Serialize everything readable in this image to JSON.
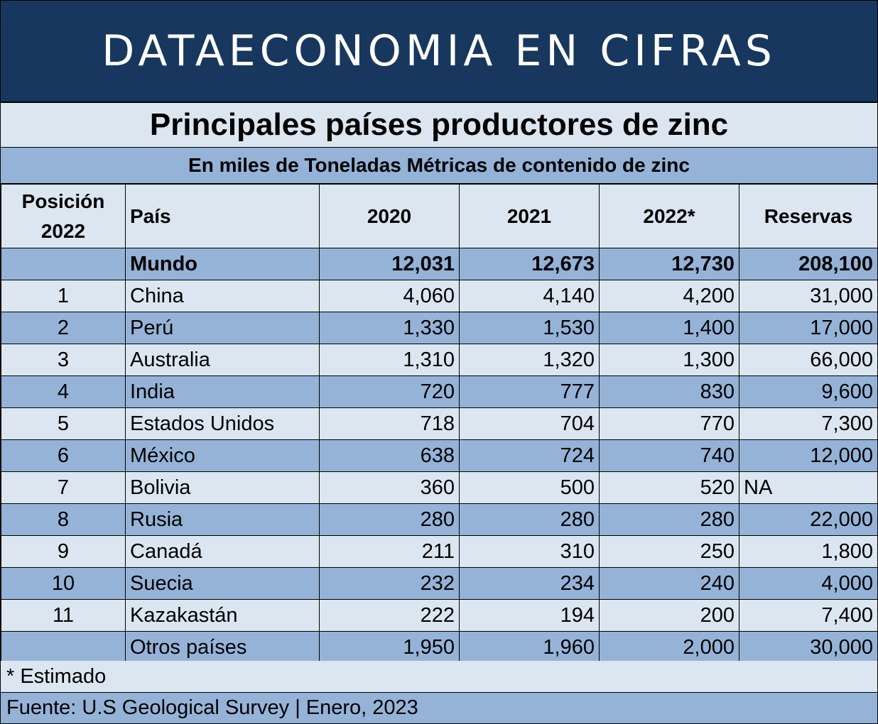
{
  "banner": "DATAECONOMIA EN CIFRAS",
  "colors": {
    "navy": "#17375e",
    "light": "#dce6f1",
    "dark": "#95b3d7"
  },
  "chart_data": {
    "type": "table",
    "title": "Principales países productores de zinc",
    "subtitle": "En miles de Toneladas Métricas de contenido de zinc",
    "columns": [
      "Posición 2022",
      "País",
      "2020",
      "2021",
      "2022*",
      "Reservas"
    ],
    "rows": [
      {
        "pos": "",
        "country": "Mundo",
        "y2020": "12,031",
        "y2021": "12,673",
        "y2022": "12,730",
        "reserves": "208,100"
      },
      {
        "pos": "1",
        "country": "China",
        "y2020": "4,060",
        "y2021": "4,140",
        "y2022": "4,200",
        "reserves": "31,000"
      },
      {
        "pos": "2",
        "country": "Perú",
        "y2020": "1,330",
        "y2021": "1,530",
        "y2022": "1,400",
        "reserves": "17,000"
      },
      {
        "pos": "3",
        "country": "Australia",
        "y2020": "1,310",
        "y2021": "1,320",
        "y2022": "1,300",
        "reserves": "66,000"
      },
      {
        "pos": "4",
        "country": "India",
        "y2020": "720",
        "y2021": "777",
        "y2022": "830",
        "reserves": "9,600"
      },
      {
        "pos": "5",
        "country": "Estados Unidos",
        "y2020": "718",
        "y2021": "704",
        "y2022": "770",
        "reserves": "7,300"
      },
      {
        "pos": "6",
        "country": "México",
        "y2020": "638",
        "y2021": "724",
        "y2022": "740",
        "reserves": "12,000"
      },
      {
        "pos": "7",
        "country": "Bolivia",
        "y2020": "360",
        "y2021": "500",
        "y2022": "520",
        "reserves": "NA"
      },
      {
        "pos": "8",
        "country": "Rusia",
        "y2020": "280",
        "y2021": "280",
        "y2022": "280",
        "reserves": "22,000"
      },
      {
        "pos": "9",
        "country": "Canadá",
        "y2020": "211",
        "y2021": "310",
        "y2022": "250",
        "reserves": "1,800"
      },
      {
        "pos": "10",
        "country": "Suecia",
        "y2020": "232",
        "y2021": "234",
        "y2022": "240",
        "reserves": "4,000"
      },
      {
        "pos": "11",
        "country": "Kazakastán",
        "y2020": "222",
        "y2021": "194",
        "y2022": "200",
        "reserves": "7,400"
      },
      {
        "pos": "",
        "country": "Otros países",
        "y2020": "1,950",
        "y2021": "1,960",
        "y2022": "2,000",
        "reserves": "30,000"
      }
    ],
    "footnote": "* Estimado",
    "source": "Fuente: U.S Geological Survey | Enero, 2023"
  }
}
